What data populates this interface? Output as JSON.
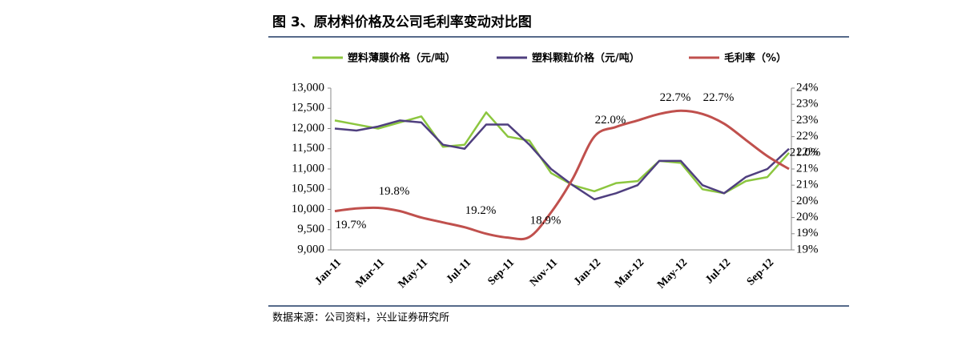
{
  "chart_data": {
    "type": "line",
    "title": "图 3、原材料价格及公司毛利率变动对比图",
    "source": "数据来源：公司资料，兴业证券研究所",
    "categories": [
      "Jan-11",
      null,
      "Mar-11",
      null,
      "May-11",
      null,
      "Jul-11",
      null,
      "Sep-11",
      null,
      "Nov-11",
      null,
      "Jan-12",
      null,
      "Mar-12",
      null,
      "May-12",
      null,
      "Jul-12",
      null,
      "Sep-12",
      null
    ],
    "ylim": [
      9000,
      13000
    ],
    "yticks": [
      {
        "value": 9000,
        "label": "9,000"
      },
      {
        "value": 9500,
        "label": "9,500"
      },
      {
        "value": 10000,
        "label": "10,000"
      },
      {
        "value": 10500,
        "label": "10,500"
      },
      {
        "value": 11000,
        "label": "11,000"
      },
      {
        "value": 11500,
        "label": "11,500"
      },
      {
        "value": 12000,
        "label": "12,000"
      },
      {
        "value": 12500,
        "label": "12,500"
      },
      {
        "value": 13000,
        "label": "13,000"
      }
    ],
    "y2lim": [
      18.5,
      23.5
    ],
    "y2ticks": [
      {
        "value": 18.5,
        "label": "19%"
      },
      {
        "value": 19,
        "label": "19%"
      },
      {
        "value": 19.5,
        "label": "20%"
      },
      {
        "value": 20,
        "label": "20%"
      },
      {
        "value": 20.5,
        "label": "21%"
      },
      {
        "value": 21,
        "label": "21%"
      },
      {
        "value": 21.5,
        "label": "22%"
      },
      {
        "value": 22,
        "label": "22%"
      },
      {
        "value": 22.5,
        "label": "23%"
      },
      {
        "value": 23,
        "label": "23%"
      },
      {
        "value": 23.5,
        "label": "24%"
      }
    ],
    "legend": "top",
    "series": [
      {
        "name": "塑料薄膜价格（元/吨）",
        "color": "#8cc63f",
        "values": [
          12200,
          12100,
          12000,
          12150,
          12300,
          11550,
          11600,
          12400,
          11800,
          11700,
          10900,
          10600,
          10450,
          10650,
          10700,
          11200,
          11150,
          10500,
          10400,
          10700,
          10800,
          11400
        ]
      },
      {
        "name": "塑料颗粒价格（元/吨）",
        "color": "#4f3f7f",
        "values": [
          12000,
          11950,
          12050,
          12200,
          12150,
          11600,
          11500,
          12100,
          12100,
          11600,
          11000,
          10600,
          10250,
          10400,
          10600,
          11200,
          11200,
          10600,
          10400,
          10800,
          11000,
          11500
        ]
      },
      {
        "name": "毛利率（%）",
        "color": "#c0504d",
        "axis": "y2",
        "smooth": true,
        "values": [
          19.7,
          19.78,
          19.8,
          19.7,
          19.5,
          19.35,
          19.2,
          19.0,
          18.88,
          18.9,
          19.66,
          20.7,
          22.0,
          22.3,
          22.5,
          22.7,
          22.8,
          22.7,
          22.4,
          21.9,
          21.4,
          21.0
        ],
        "value_labels": [
          "19.7%",
          null,
          "19.8%",
          null,
          null,
          null,
          "19.2%",
          null,
          null,
          "18.9%",
          null,
          null,
          "22.0%",
          null,
          null,
          "22.7%",
          null,
          "22.7%",
          null,
          null,
          null,
          "21.0%"
        ]
      }
    ]
  }
}
